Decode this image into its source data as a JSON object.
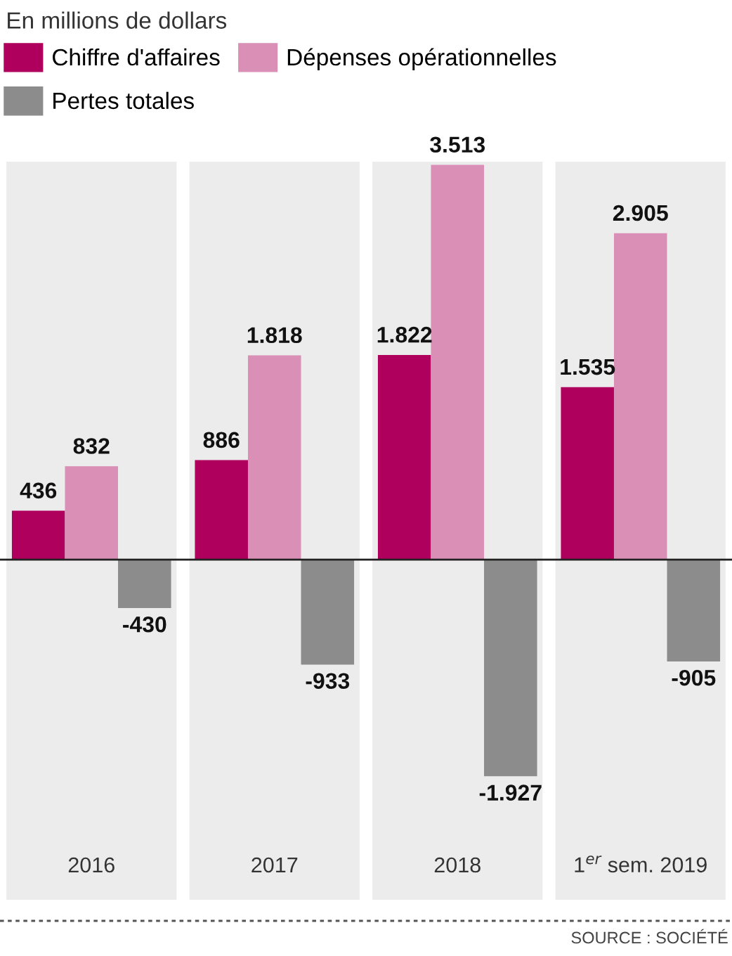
{
  "chart_data": {
    "type": "bar",
    "title": "En millions de dollars",
    "categories": [
      "2016",
      "2017",
      "2018",
      "1$^{er}$ sem. 2019"
    ],
    "series": [
      {
        "name": "Chiffre d'affaires",
        "color": "#b0005e",
        "values": [
          436,
          886,
          1822,
          1535
        ],
        "value_labels": [
          "436",
          "886",
          "1.822",
          "1.535"
        ]
      },
      {
        "name": "Dépenses opérationnelles",
        "color": "#d98fb6",
        "values": [
          832,
          1818,
          3513,
          2905
        ],
        "value_labels": [
          "832",
          "1.818",
          "3.513",
          "2.905"
        ]
      },
      {
        "name": "Pertes totales",
        "color": "#8c8c8c",
        "values": [
          -430,
          -933,
          -1927,
          -905
        ],
        "value_labels": [
          "-430",
          "-933",
          "-1.927",
          "-905"
        ]
      }
    ],
    "legend": "top left",
    "annotations": [
      "SOURCE : SOCIÉTÉ"
    ]
  }
}
